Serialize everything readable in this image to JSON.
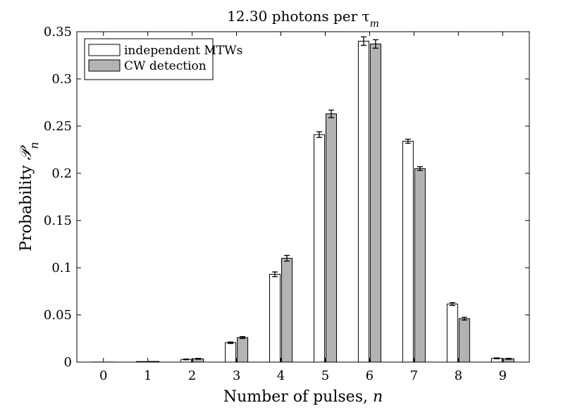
{
  "chart_data": {
    "type": "bar",
    "title": "12.30 photons per τ",
    "title_subscript": "m",
    "xlabel": "Number of pulses, ",
    "xlabel_var": "n",
    "ylabel": "Probability ",
    "ylabel_sym": "𝒫",
    "ylabel_sub": "n",
    "categories": [
      "0",
      "1",
      "2",
      "3",
      "4",
      "5",
      "6",
      "7",
      "8",
      "9"
    ],
    "ylim": [
      0,
      0.35
    ],
    "yticks": [
      0,
      0.05,
      0.1,
      0.15,
      0.2,
      0.25,
      0.3,
      0.35
    ],
    "ytick_labels": [
      "0",
      "0.05",
      "0.1",
      "0.15",
      "0.2",
      "0.25",
      "0.3",
      "0.35"
    ],
    "grid": false,
    "legend_position": "top-left",
    "series": [
      {
        "name": "independent MTWs",
        "color": "#ffffff",
        "values": [
          0.0001,
          0.0006,
          0.0028,
          0.0205,
          0.093,
          0.241,
          0.34,
          0.234,
          0.0615,
          0.004
        ],
        "errors": [
          0.0001,
          0.0002,
          0.0004,
          0.0008,
          0.0025,
          0.003,
          0.0045,
          0.0022,
          0.0015,
          0.0005
        ]
      },
      {
        "name": "CW detection",
        "color": "#b3b3b3",
        "values": [
          0.0001,
          0.0007,
          0.0035,
          0.026,
          0.11,
          0.263,
          0.337,
          0.205,
          0.046,
          0.0035
        ],
        "errors": [
          0.0001,
          0.0002,
          0.0005,
          0.001,
          0.003,
          0.004,
          0.0045,
          0.002,
          0.0015,
          0.0005
        ]
      }
    ]
  }
}
